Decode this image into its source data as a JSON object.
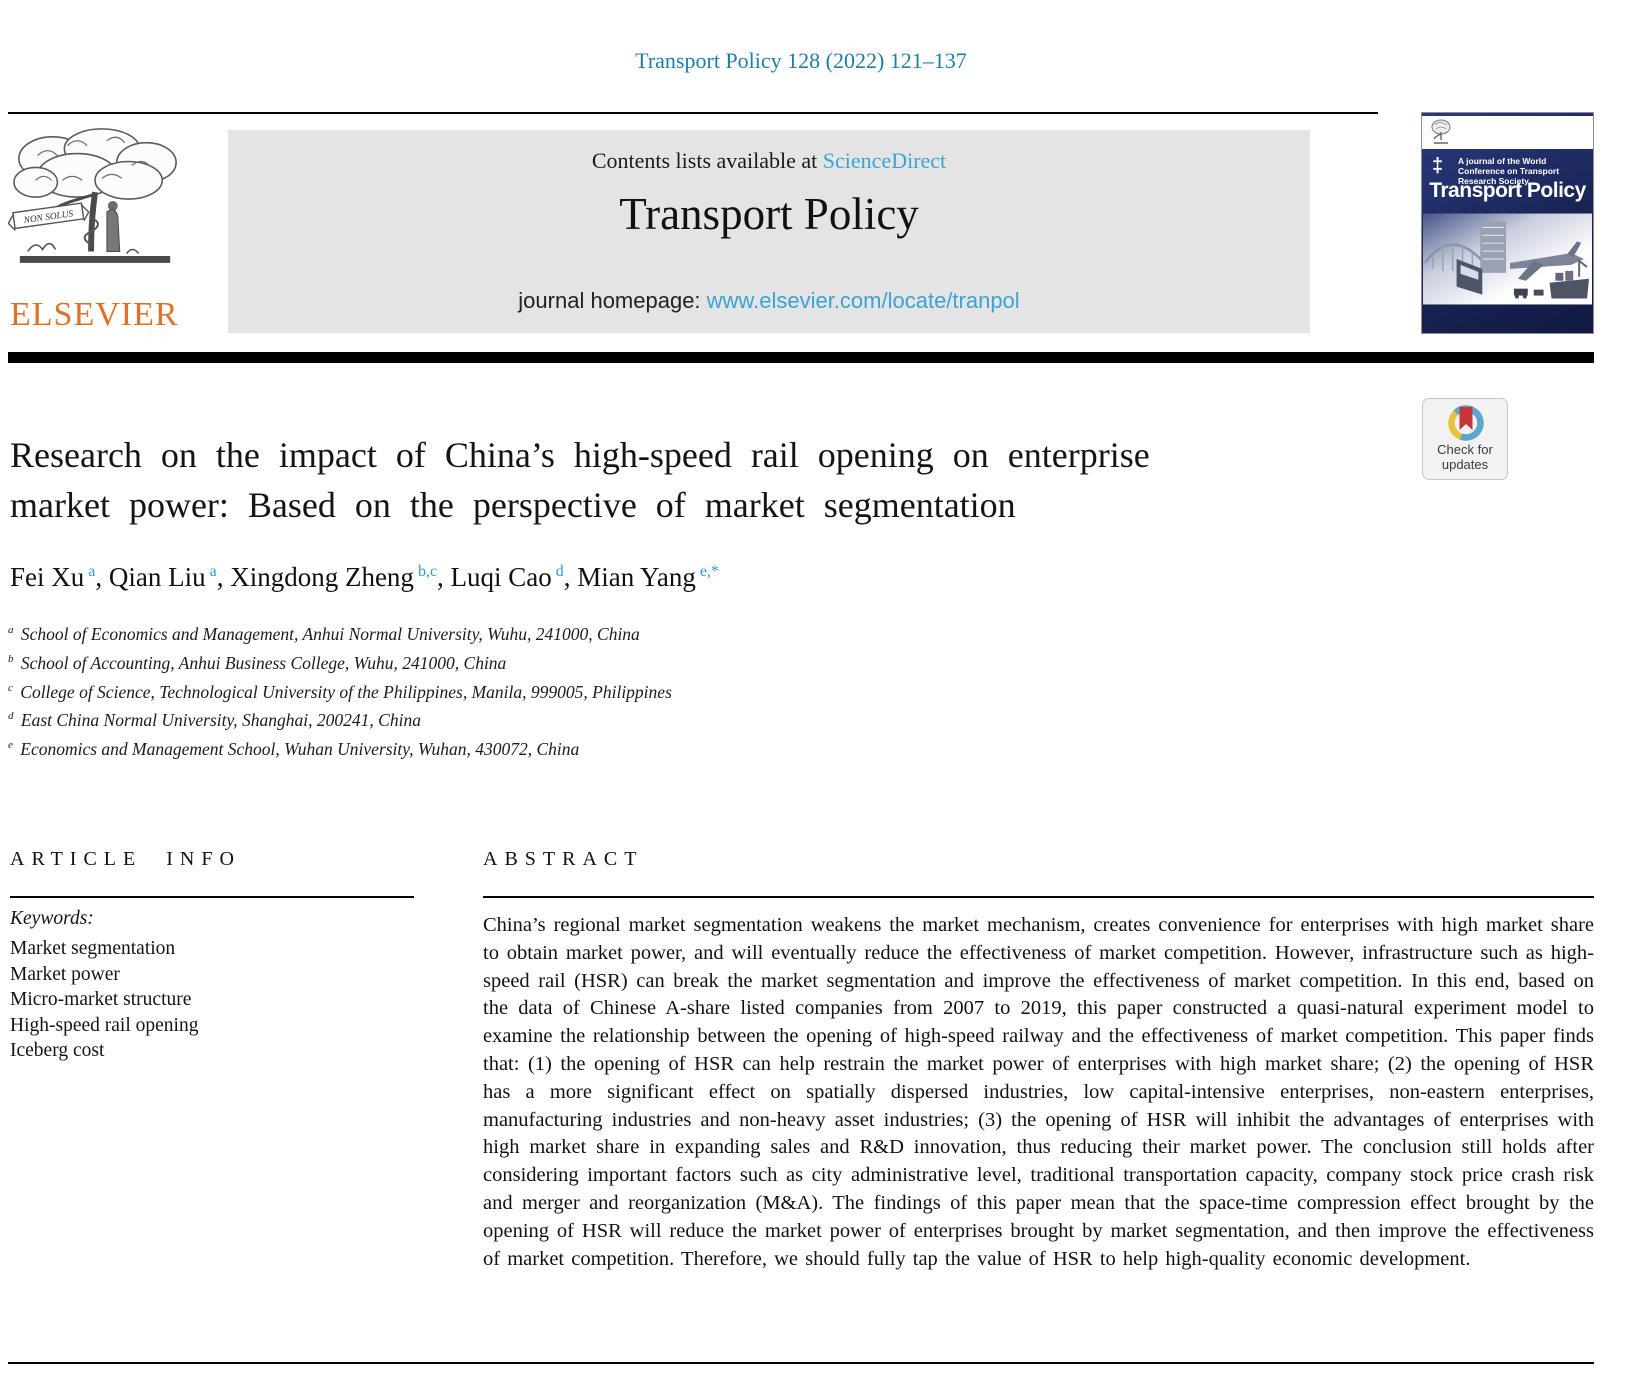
{
  "page": {
    "header_citation": "Transport Policy 128 (2022) 121–137"
  },
  "banner": {
    "contents_prefix": "Contents lists available at ",
    "contents_link": "ScienceDirect",
    "journal_title": "Transport Policy",
    "homepage_prefix": "journal homepage: ",
    "homepage_link": "www.elsevier.com/locate/tranpol",
    "publisher": "ELSEVIER",
    "logo_motto": "NON SOLUS"
  },
  "cover": {
    "society_line": "A journal of the World Conference on Transport Research Society",
    "title": "Transport Policy"
  },
  "badge": {
    "line1": "Check for",
    "line2": "updates"
  },
  "article": {
    "title_lines": [
      "Research on the impact of China’s high-speed rail opening on enterprise",
      "market power: Based on the perspective of market segmentation"
    ],
    "authors": [
      {
        "name": "Fei Xu",
        "sup": "a"
      },
      {
        "name": "Qian Liu",
        "sup": "a"
      },
      {
        "name": "Xingdong Zheng",
        "sup": "b,c"
      },
      {
        "name": "Luqi Cao",
        "sup": "d"
      },
      {
        "name": "Mian Yang",
        "sup": "e,*"
      }
    ],
    "affiliations": [
      {
        "sup": "a",
        "text": "School of Economics and Management, Anhui Normal University, Wuhu, 241000, China"
      },
      {
        "sup": "b",
        "text": "School of Accounting, Anhui Business College, Wuhu, 241000, China"
      },
      {
        "sup": "c",
        "text": "College of Science, Technological University of the Philippines, Manila, 999005, Philippines"
      },
      {
        "sup": "d",
        "text": "East China Normal University, Shanghai, 200241, China"
      },
      {
        "sup": "e",
        "text": "Economics and Management School, Wuhan University, Wuhan, 430072, China"
      }
    ]
  },
  "article_info": {
    "heading": "ARTICLE INFO",
    "keywords_label": "Keywords:",
    "keywords": [
      "Market segmentation",
      "Market power",
      "Micro-market structure",
      "High-speed rail opening",
      "Iceberg cost"
    ]
  },
  "abstract": {
    "heading": "ABSTRACT",
    "text": "China’s regional market segmentation weakens the market mechanism, creates convenience for enterprises with high market share to obtain market power, and will eventually reduce the effectiveness of market competition. However, infrastructure such as high-speed rail (HSR) can break the market segmentation and improve the effectiveness of market competition. In this end, based on the data of Chinese A-share listed companies from 2007 to 2019, this paper constructed a quasi-natural experiment model to examine the relationship between the opening of high-speed railway and the effectiveness of market competition. This paper finds that: (1) the opening of HSR can help restrain the market power of enterprises with high market share; (2) the opening of HSR has a more significant effect on spatially dispersed industries, low capital-intensive enterprises, non-eastern enterprises, manufacturing industries and non-heavy asset industries; (3) the opening of HSR will inhibit the advantages of enterprises with high market share in expanding sales and R&D innovation, thus reducing their market power. The conclusion still holds after considering important factors such as city administrative level, traditional transportation capacity, company stock price crash risk and merger and reorganization (M&A). The findings of this paper mean that the space-time compression effect brought by the opening of HSR will reduce the market power of enterprises brought by market segmentation, and then improve the effectiveness of market competition. Therefore, we should fully tap the value of HSR to help high-quality economic development."
  },
  "colors": {
    "header_blue": "#1e7ca9",
    "link_blue": "#3aa3d6",
    "elsevier_orange": "#e0702a",
    "banner_gray": "#e4e4e4",
    "cover_navy": "#1c2a63",
    "badge_blue": "#5aa7d1",
    "badge_yellow": "#e7c23c",
    "badge_red": "#c8333c",
    "divider_black": "#000000"
  }
}
